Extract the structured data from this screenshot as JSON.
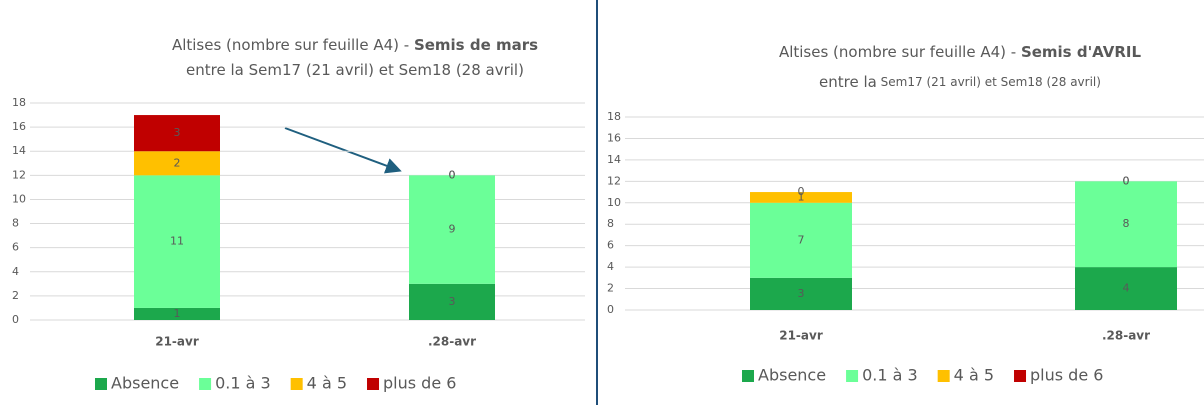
{
  "chart_data": [
    {
      "type": "stacked_bar",
      "title": {
        "text": "Altises (nombre sur feuille A4) - ",
        "bold": "Semis de mars"
      },
      "subtitle": {
        "text": "entre la Sem17 (21 avril) et Sem18 (28 avril)"
      },
      "categories": [
        "21-avr",
        ".28-avr"
      ],
      "series": [
        {
          "name": "Absence",
          "color": "#1ca84c",
          "values": [
            1,
            3
          ]
        },
        {
          "name": "0.1 à 3",
          "color": "#6bff98",
          "values": [
            11,
            9
          ]
        },
        {
          "name": "4 à 5",
          "color": "#ffc000",
          "values": [
            2,
            0
          ]
        },
        {
          "name": "plus de 6",
          "color": "#c00000",
          "values": [
            3,
            0
          ]
        }
      ],
      "ylim": [
        0,
        18
      ],
      "yticks": [
        0,
        2,
        4,
        6,
        8,
        10,
        12,
        14,
        16,
        18
      ],
      "grid": true
    },
    {
      "type": "stacked_bar",
      "title": {
        "text": "Altises (nombre sur feuille A4) - ",
        "bold": "Semis d'AVRIL"
      },
      "subtitle": {
        "text": "entre la",
        "small": " Sem17 (21 avril) et Sem18 (28 avril)"
      },
      "categories": [
        "21-avr",
        ".28-avr"
      ],
      "series": [
        {
          "name": "Absence",
          "color": "#1ca84c",
          "values": [
            3,
            4
          ]
        },
        {
          "name": "0.1 à 3",
          "color": "#6bff98",
          "values": [
            7,
            8
          ]
        },
        {
          "name": "4 à 5",
          "color": "#ffc000",
          "values": [
            1,
            0
          ]
        },
        {
          "name": "plus de 6",
          "color": "#c00000",
          "values": [
            0,
            0
          ]
        }
      ],
      "ylim": [
        0,
        18
      ],
      "yticks": [
        0,
        2,
        4,
        6,
        8,
        10,
        12,
        14,
        16,
        18
      ],
      "grid": true
    }
  ]
}
